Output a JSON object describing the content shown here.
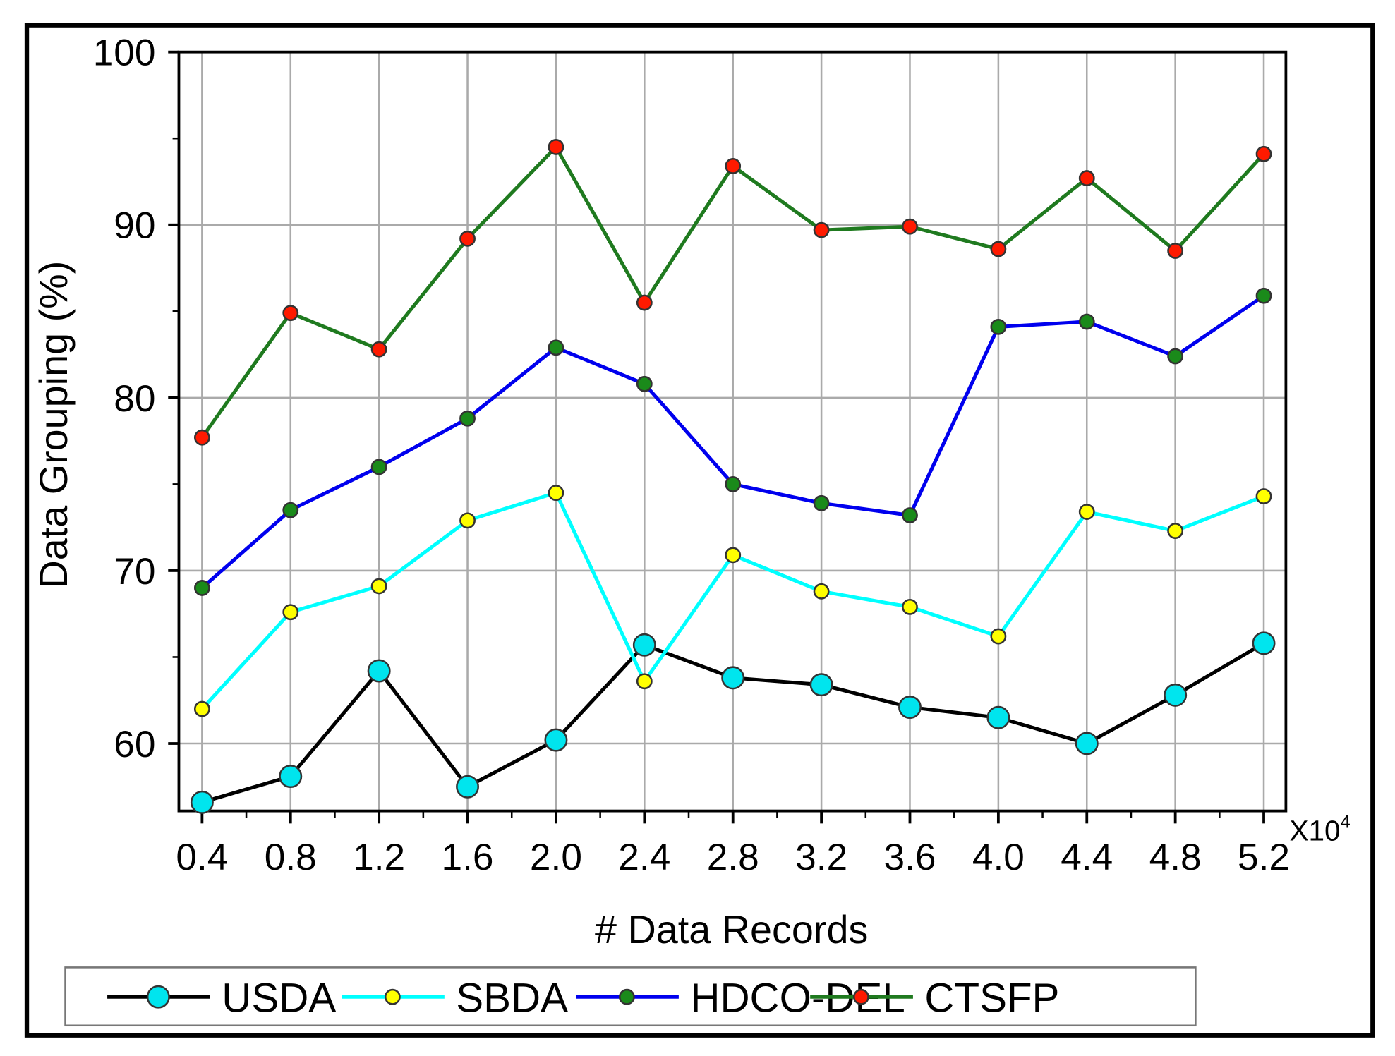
{
  "chart_data": {
    "type": "line",
    "title": "",
    "xlabel": "# Data Records",
    "ylabel": "Data Grouping (%)",
    "x_multiplier_label": "X10",
    "x_multiplier_exp": "4",
    "x": [
      0.4,
      0.8,
      1.2,
      1.6,
      2.0,
      2.4,
      2.8,
      3.2,
      3.6,
      4.0,
      4.4,
      4.8,
      5.2
    ],
    "x_tick_labels": [
      "0.4",
      "0.8",
      "1.2",
      "1.6",
      "2.0",
      "2.4",
      "2.8",
      "3.2",
      "3.6",
      "4.0",
      "4.4",
      "4.8",
      "5.2"
    ],
    "xlim": [
      0.295,
      5.3
    ],
    "ylim": [
      56.1,
      100
    ],
    "y_ticks": [
      60,
      70,
      80,
      90,
      100
    ],
    "y_tick_labels": [
      "60",
      "70",
      "80",
      "90",
      "100"
    ],
    "grid": true,
    "legend_position": "bottom",
    "series": [
      {
        "name": "USDA",
        "line_color": "#000000",
        "marker_color": "#00e5ee",
        "marker_size": "large",
        "values": [
          56.6,
          58.1,
          64.2,
          57.5,
          60.2,
          65.7,
          63.8,
          63.4,
          62.1,
          61.5,
          60.0,
          62.8,
          65.8
        ]
      },
      {
        "name": "SBDA",
        "line_color": "#00ffff",
        "marker_color": "#ffff00",
        "marker_size": "small",
        "values": [
          62.0,
          67.6,
          69.1,
          72.9,
          74.5,
          63.6,
          70.9,
          68.8,
          67.9,
          66.2,
          73.4,
          72.3,
          74.3
        ]
      },
      {
        "name": "HDCO-DEL",
        "line_color": "#0000ee",
        "marker_color": "#1a8a1a",
        "marker_size": "small",
        "values": [
          69.0,
          73.5,
          76.0,
          78.8,
          82.9,
          80.8,
          75.0,
          73.9,
          73.2,
          84.1,
          84.4,
          82.4,
          85.9
        ]
      },
      {
        "name": "CTSFP",
        "line_color": "#1f7a1f",
        "marker_color": "#ff1a00",
        "marker_size": "small",
        "values": [
          77.7,
          84.9,
          82.8,
          89.2,
          94.5,
          85.5,
          93.4,
          89.7,
          89.9,
          88.6,
          92.7,
          88.5,
          94.1
        ]
      }
    ]
  }
}
